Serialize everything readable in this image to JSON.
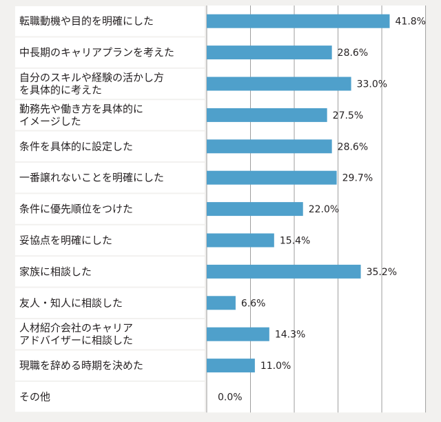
{
  "chart_data": {
    "type": "bar",
    "orientation": "horizontal",
    "categories": [
      [
        "転職動機や目的を明確にした"
      ],
      [
        "中長期のキャリアプランを考えた"
      ],
      [
        "自分のスキルや経験の活かし方",
        "を具体的に考えた"
      ],
      [
        "勤務先や働き方を具体的に",
        "イメージした"
      ],
      [
        "条件を具体的に設定した"
      ],
      [
        "一番譲れないことを明確にした"
      ],
      [
        "条件に優先順位をつけた"
      ],
      [
        "妥協点を明確にした"
      ],
      [
        "家族に相談した"
      ],
      [
        "友人・知人に相談した"
      ],
      [
        "人材紹介会社のキャリア",
        "アドバイザーに相談した"
      ],
      [
        "現職を辞める時期を決めた"
      ],
      [
        "その他"
      ]
    ],
    "values": [
      41.8,
      28.6,
      33.0,
      27.5,
      28.6,
      29.7,
      22.0,
      15.4,
      35.2,
      6.6,
      14.3,
      11.0,
      0.0
    ],
    "value_labels": [
      "41.8%",
      "28.6%",
      "33.0%",
      "27.5%",
      "28.6%",
      "29.7%",
      "22.0%",
      "15.4%",
      "35.2%",
      "6.6%",
      "14.3%",
      "11.0%",
      "0.0%"
    ],
    "xlim": [
      0,
      50
    ],
    "grid": true,
    "colors": {
      "bar": "#4fa0cb",
      "background": "#f2f1ef",
      "plot_background": "#ffffff",
      "grid": "#9d9d9d",
      "text": "#231f20"
    }
  }
}
